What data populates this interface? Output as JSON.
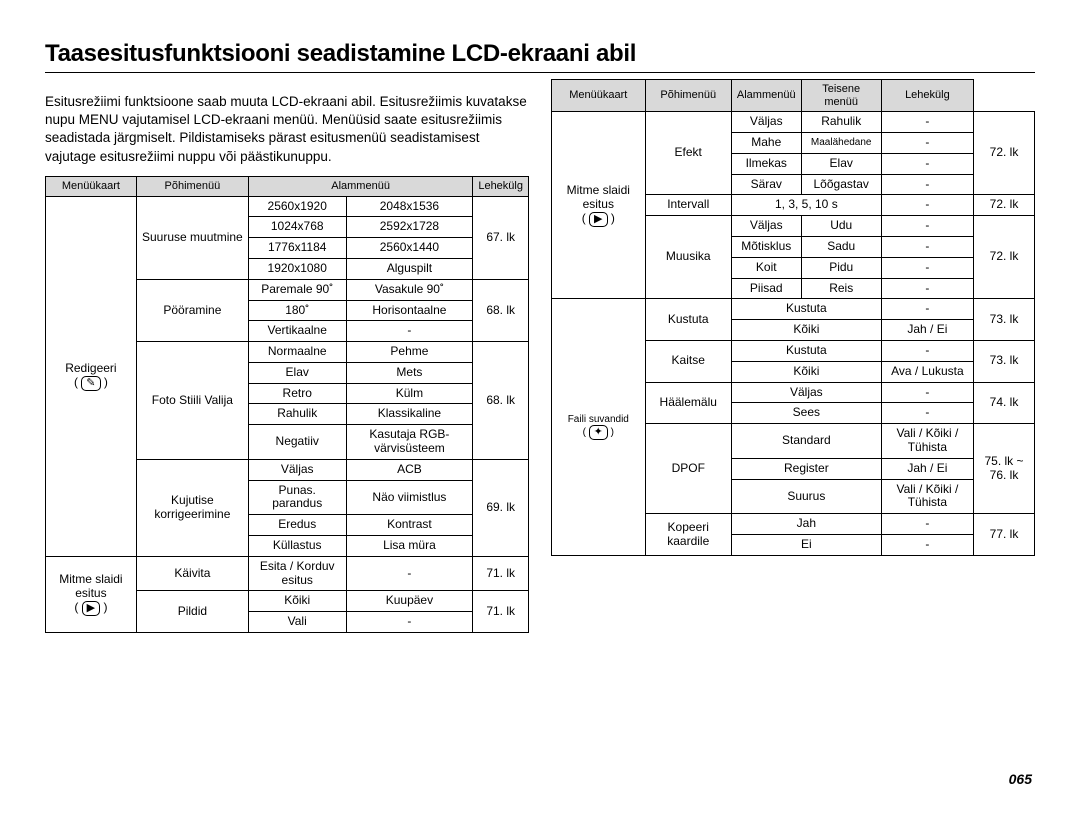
{
  "title": "Taasesitusfunktsiooni seadistamine LCD-ekraani abil",
  "intro": "Esitusrežiimi funktsioone saab muuta LCD-ekraani abil. Esitusrežiimis kuvatakse nupu MENU vajutamisel LCD-ekraani menüü. Menüüsid saate esitusrežiimis seadistada järgmiselt. Pildistamiseks pärast esitusmenüü seadistamisest vajutage esitusrežiimi nuppu või päästikunuppu.",
  "pagenum": "065",
  "left": {
    "head": [
      "Menüükaart",
      "Põhimenüü",
      "Alammenüü",
      "Lehekülg"
    ],
    "menucard1": "Redigeeri",
    "menucard1_icon": "✎",
    "menucard2": "Mitme slaidi esitus",
    "menucard2_icon": "▶",
    "r": {
      "suurus": "Suuruse muutmine",
      "res": [
        "2560x1920",
        "2048x1536",
        "1024x768",
        "2592x1728",
        "1776x1184",
        "2560x1440",
        "1920x1080",
        "Alguspilt"
      ],
      "suurus_page": "67. lk",
      "poor": "Pööramine",
      "poor_rows": [
        [
          "Paremale 90˚",
          "Vasakule 90˚"
        ],
        [
          "180˚",
          "Horisontaalne"
        ],
        [
          "Vertikaalne",
          "-"
        ]
      ],
      "poor_page": "68. lk",
      "foto": "Foto Stiili Valija",
      "foto_rows": [
        [
          "Normaalne",
          "Pehme"
        ],
        [
          "Elav",
          "Mets"
        ],
        [
          "Retro",
          "Külm"
        ],
        [
          "Rahulik",
          "Klassikaline"
        ],
        [
          "Negatiiv",
          "Kasutaja RGB-värvisüsteem"
        ]
      ],
      "foto_page": "68. lk",
      "kuju": "Kujutise korrigeerimine",
      "kuju_rows": [
        [
          "Väljas",
          "ACB"
        ],
        [
          "Punas. parandus",
          "Näo viimistlus"
        ],
        [
          "Eredus",
          "Kontrast"
        ],
        [
          "Küllastus",
          "Lisa müra"
        ]
      ],
      "kuju_page": "69. lk",
      "kaiv": "Käivita",
      "kaiv_c1": "Esita / Korduv esitus",
      "kaiv_c2": "-",
      "kaiv_page": "71. lk",
      "pild": "Pildid",
      "pild_rows": [
        [
          "Kõiki",
          "Kuupäev"
        ],
        [
          "Vali",
          "-"
        ]
      ],
      "pild_page": "71. lk"
    }
  },
  "right": {
    "head": [
      "Menüükaart",
      "Põhimenüü",
      "Alammenüü",
      "Teisene menüü",
      "Lehekülg"
    ],
    "menucard1": "Mitme slaidi esitus",
    "menucard1_icon": "▶",
    "menucard2": "Faili suvandid",
    "menucard2_icon": "✦",
    "r": {
      "efekt": "Efekt",
      "efekt_rows": [
        [
          "Väljas",
          "Rahulik",
          "-"
        ],
        [
          "Mahe",
          "Maalähedane",
          "-"
        ],
        [
          "Ilmekas",
          "Elav",
          "-"
        ],
        [
          "Särav",
          "Lõõgastav",
          "-"
        ]
      ],
      "efekt_page": "72. lk",
      "intervall": "Intervall",
      "intervall_c1": "1, 3, 5, 10 s",
      "intervall_c2": "-",
      "intervall_page": "72. lk",
      "muusika": "Muusika",
      "muusika_rows": [
        [
          "Väljas",
          "Udu",
          "-"
        ],
        [
          "Mõtisklus",
          "Sadu",
          "-"
        ],
        [
          "Koit",
          "Pidu",
          "-"
        ],
        [
          "Piisad",
          "Reis",
          "-"
        ]
      ],
      "muusika_page": "72. lk",
      "kustuta": "Kustuta",
      "kustuta_rows": [
        [
          "Kustuta",
          "-"
        ],
        [
          "Kõiki",
          "Jah / Ei"
        ]
      ],
      "kustuta_page": "73. lk",
      "kaitse": "Kaitse",
      "kaitse_rows": [
        [
          "Kustuta",
          "-"
        ],
        [
          "Kõiki",
          "Ava / Lukusta"
        ]
      ],
      "kaitse_page": "73. lk",
      "haal": "Häälemälu",
      "haal_rows": [
        [
          "Väljas",
          "-"
        ],
        [
          "Sees",
          "-"
        ]
      ],
      "haal_page": "74. lk",
      "dpof": "DPOF",
      "dpof_rows": [
        [
          "Standard",
          "Vali / Kõiki / Tühista"
        ],
        [
          "Register",
          "Jah / Ei"
        ],
        [
          "Suurus",
          "Vali / Kõiki / Tühista"
        ]
      ],
      "dpof_page": "75. lk ~ 76. lk",
      "kopeeri": "Kopeeri kaardile",
      "kopeeri_rows": [
        [
          "Jah",
          "-"
        ],
        [
          "Ei",
          "-"
        ]
      ],
      "kopeeri_page": "77. lk"
    }
  }
}
